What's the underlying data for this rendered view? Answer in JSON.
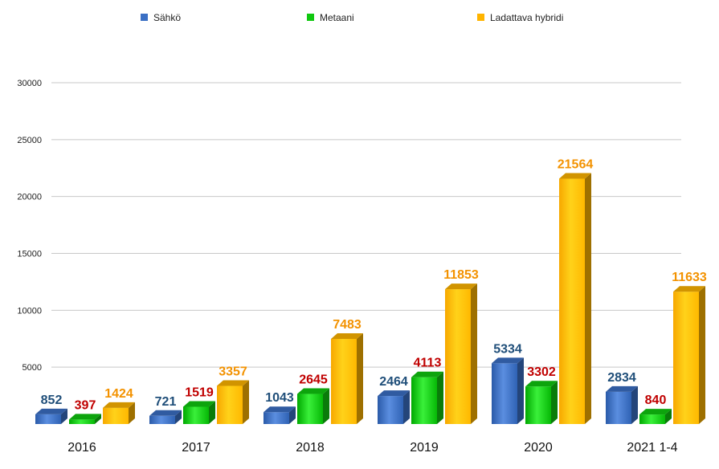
{
  "chart_data": {
    "type": "bar",
    "categories": [
      "2016",
      "2017",
      "2018",
      "2019",
      "2020",
      "2021 1-4"
    ],
    "series": [
      {
        "name": "Sähkö",
        "values": [
          852,
          721,
          1043,
          2464,
          5334,
          2834
        ],
        "color": "#3a6fc4",
        "label_color": "#1f4e79"
      },
      {
        "name": "Metaani",
        "values": [
          397,
          1519,
          2645,
          4113,
          3302,
          840
        ],
        "color": "#10c810",
        "label_color": "#c00000"
      },
      {
        "name": "Ladattava hybridi",
        "values": [
          1424,
          3357,
          7483,
          11853,
          21564,
          11633
        ],
        "color": "#ffb400",
        "label_color": "#f39200"
      }
    ],
    "y_ticks": [
      "5000",
      "10000",
      "15000",
      "20000",
      "25000",
      "30000"
    ],
    "ylim": [
      0,
      30000
    ],
    "grid": true,
    "legend_position": "top"
  }
}
